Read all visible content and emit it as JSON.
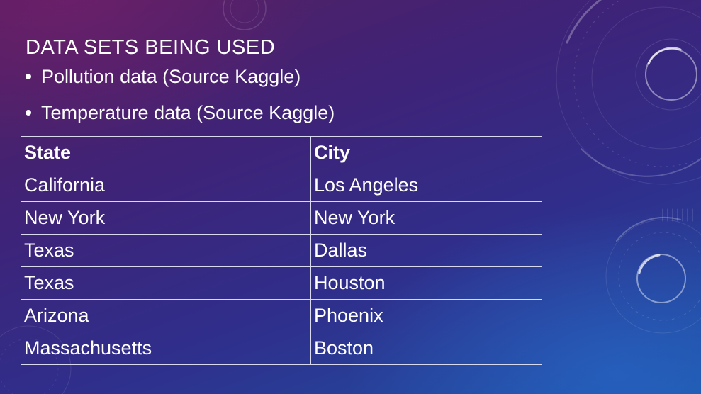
{
  "slide": {
    "title": "DATA SETS BEING USED",
    "bullets": [
      "Pollution data (Source Kaggle)",
      "Temperature data (Source Kaggle)"
    ],
    "table": {
      "headers": [
        "State",
        "City"
      ],
      "rows": [
        [
          "California",
          "Los Angeles"
        ],
        [
          "New York",
          "New York"
        ],
        [
          "Texas",
          "Dallas"
        ],
        [
          "Texas",
          "Houston"
        ],
        [
          "Arizona",
          "Phoenix"
        ],
        [
          "Massachusetts",
          "Boston"
        ]
      ]
    }
  },
  "colors": {
    "text": "#ffffff",
    "table_border": "#d9d9ee",
    "background_top": "#57205f",
    "background_bottom": "#1e54a6"
  }
}
